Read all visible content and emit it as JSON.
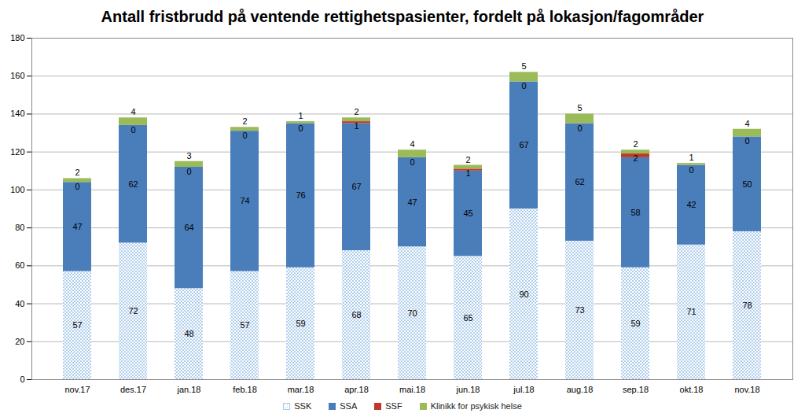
{
  "chart_data": {
    "type": "bar",
    "title": "Antall fristbrudd på ventende rettighetspasienter, fordelt på lokasjon/fagområder",
    "categories": [
      "nov.17",
      "des.17",
      "jan.18",
      "feb.18",
      "mar.18",
      "apr.18",
      "mai.18",
      "jun.18",
      "jul.18",
      "aug.18",
      "sep.18",
      "okt.18",
      "nov.18"
    ],
    "series": [
      {
        "name": "SSK",
        "color": "#a6c8ec",
        "values": [
          57,
          72,
          48,
          57,
          59,
          68,
          70,
          65,
          90,
          73,
          59,
          71,
          78
        ]
      },
      {
        "name": "SSA",
        "color": "#4a7ebb",
        "values": [
          47,
          62,
          64,
          74,
          76,
          67,
          47,
          45,
          67,
          62,
          58,
          42,
          50
        ]
      },
      {
        "name": "SSF",
        "color": "#c0392b",
        "values": [
          0,
          0,
          0,
          0,
          0,
          1,
          0,
          1,
          0,
          0,
          2,
          0,
          0
        ]
      },
      {
        "name": "Klinikk for psykisk helse",
        "color": "#9bbb59",
        "values": [
          2,
          4,
          3,
          2,
          1,
          2,
          4,
          2,
          5,
          5,
          2,
          1,
          4
        ]
      }
    ],
    "stacked": true,
    "data_labels": true,
    "ylim": [
      0,
      180
    ],
    "yticks": [
      0,
      20,
      40,
      60,
      80,
      100,
      120,
      140,
      160,
      180
    ],
    "grid": true,
    "legend": "bottom"
  }
}
